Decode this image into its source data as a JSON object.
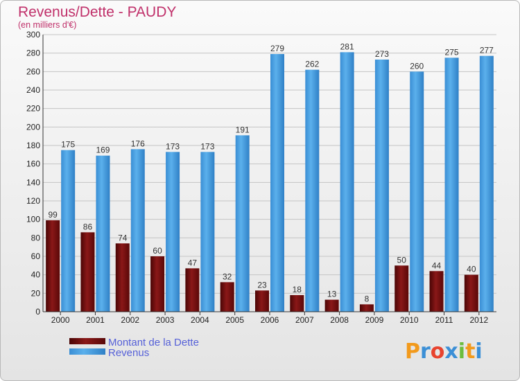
{
  "chart_data": {
    "type": "bar",
    "title": "Revenus/Dette - PAUDY",
    "subtitle": "(en milliers d'€)",
    "categories": [
      "2000",
      "2001",
      "2002",
      "2003",
      "2004",
      "2005",
      "2006",
      "2007",
      "2008",
      "2009",
      "2010",
      "2011",
      "2012"
    ],
    "series": [
      {
        "name": "Montant de la Dette",
        "color": "#7a0c0c",
        "values": [
          99,
          86,
          74,
          60,
          47,
          32,
          23,
          18,
          13,
          8,
          50,
          44,
          40
        ]
      },
      {
        "name": "Revenus",
        "color": "#3f98dc",
        "values": [
          175,
          169,
          176,
          173,
          173,
          191,
          279,
          262,
          281,
          273,
          260,
          275,
          277
        ]
      }
    ],
    "ylim": [
      0,
      300
    ],
    "yticks": [
      0,
      20,
      40,
      60,
      80,
      100,
      120,
      140,
      160,
      180,
      200,
      220,
      240,
      260,
      280,
      300
    ],
    "grid": true,
    "legend_position": "bottom-left"
  },
  "logo": {
    "letters": [
      "P",
      "r",
      "o",
      "x",
      "i",
      "t",
      "i"
    ],
    "colors": [
      "#f29a1c",
      "#3b8fd6",
      "#e8432e",
      "#3b8fd6",
      "#6cbd3e",
      "#f29a1c",
      "#3b8fd6"
    ]
  }
}
